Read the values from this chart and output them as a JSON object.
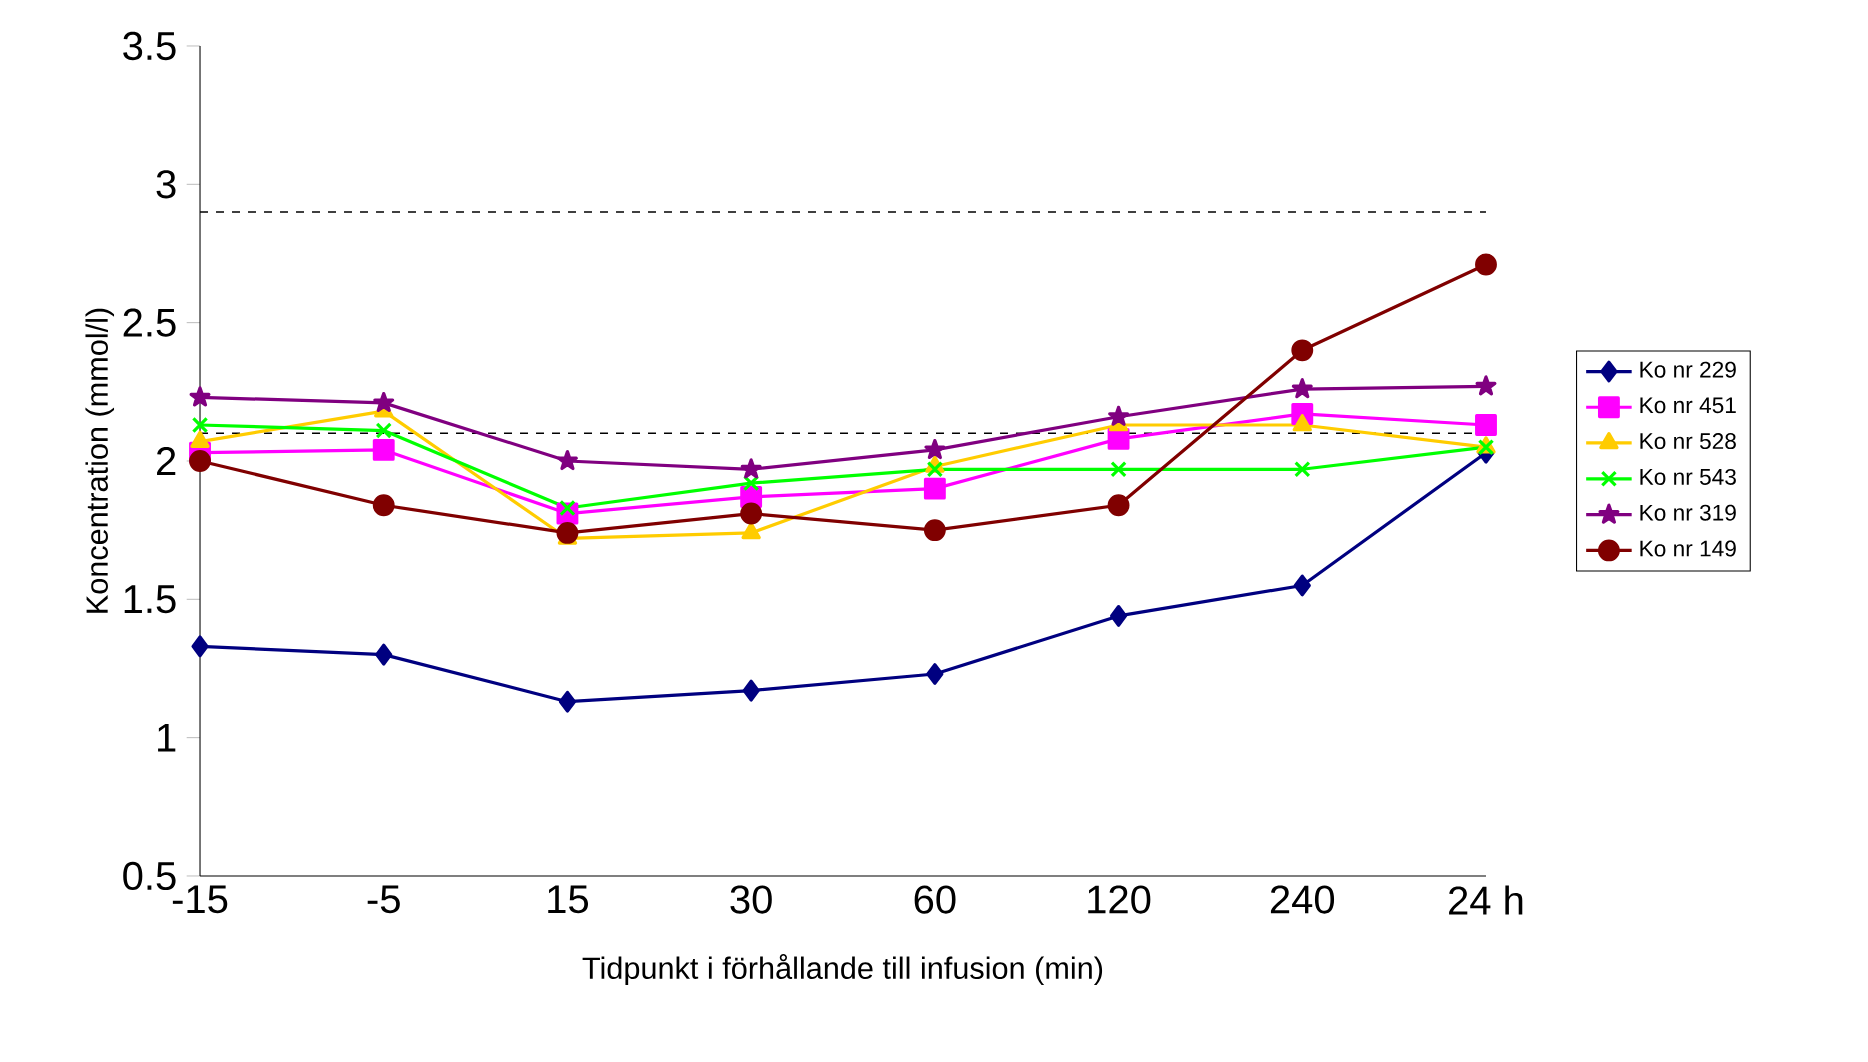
{
  "chart_data": {
    "type": "line",
    "xlabel": "Tidpunkt i förhållande till infusion (min)",
    "ylabel": "Koncentration (mmol/l)",
    "categories": [
      "-15",
      "-5",
      "15",
      "30",
      "60",
      "120",
      "240",
      "24 h"
    ],
    "ylim": [
      0.5,
      3.5
    ],
    "yticks": [
      0.5,
      1,
      1.5,
      2,
      2.5,
      3,
      3.5
    ],
    "grid": false,
    "legend": "right",
    "ref_lines": [
      {
        "axis": "y",
        "value": 2.9,
        "line_style": "dashed",
        "color": "#000000"
      },
      {
        "axis": "y",
        "value": 2.1,
        "line_style": "dashed",
        "color": "#000000"
      }
    ],
    "series": [
      {
        "name": "Ko nr 229",
        "color": "#000080",
        "marker": "diamond",
        "values": [
          1.33,
          1.3,
          1.13,
          1.17,
          1.23,
          1.44,
          1.55,
          2.03
        ]
      },
      {
        "name": "Ko nr 451",
        "color": "#ff00ff",
        "marker": "square",
        "values": [
          2.03,
          2.04,
          1.81,
          1.87,
          1.9,
          2.08,
          2.17,
          2.13
        ]
      },
      {
        "name": "Ko nr 528",
        "color": "#ffcc00",
        "marker": "triangle",
        "values": [
          2.07,
          2.18,
          1.72,
          1.74,
          1.98,
          2.13,
          2.13,
          2.05
        ]
      },
      {
        "name": "Ko nr 543",
        "color": "#00ff00",
        "marker": "cross",
        "values": [
          2.13,
          2.11,
          1.83,
          1.92,
          1.97,
          1.97,
          1.97,
          2.05
        ]
      },
      {
        "name": "Ko nr 319",
        "color": "#800080",
        "marker": "star",
        "values": [
          2.23,
          2.21,
          2.0,
          1.97,
          2.04,
          2.16,
          2.26,
          2.27
        ]
      },
      {
        "name": "Ko nr 149",
        "color": "#800000",
        "marker": "circle",
        "values": [
          2.0,
          1.84,
          1.74,
          1.81,
          1.75,
          1.84,
          2.4,
          2.71
        ]
      }
    ]
  }
}
